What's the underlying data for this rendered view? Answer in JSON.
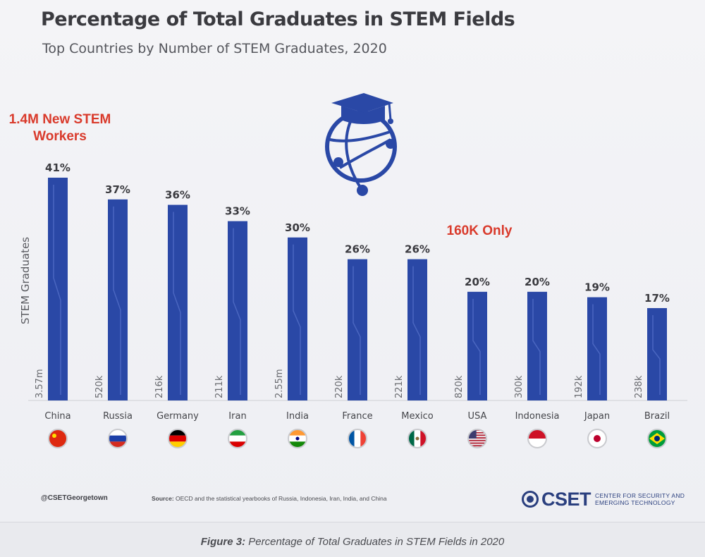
{
  "header": {
    "title": "Percentage of Total Graduates in STEM Fields",
    "subtitle": "Top Countries by Number of STEM Graduates, 2020"
  },
  "callouts": {
    "china": "1.4M New STEM Workers",
    "usa": "160K Only"
  },
  "chart_data": {
    "type": "bar",
    "title": "Percentage of Total Graduates in STEM Fields",
    "subtitle": "Top Countries by Number of STEM Graduates, 2020",
    "ylabel": "STEM Graduates",
    "xlabel": "",
    "categories": [
      "China",
      "Russia",
      "Germany",
      "Iran",
      "India",
      "France",
      "Mexico",
      "USA",
      "Indonesia",
      "Japan",
      "Brazil"
    ],
    "values": [
      41,
      37,
      36,
      33,
      30,
      26,
      26,
      20,
      20,
      19,
      17
    ],
    "value_labels": [
      "41%",
      "37%",
      "36%",
      "33%",
      "30%",
      "26%",
      "26%",
      "20%",
      "20%",
      "19%",
      "17%"
    ],
    "graduate_counts": [
      "3.57m",
      "520k",
      "216k",
      "211k",
      "2.55m",
      "220k",
      "221k",
      "820k",
      "300k",
      "192k",
      "238k"
    ],
    "ylim": [
      0,
      41
    ],
    "grid": false,
    "bar_color": "#2a48a6",
    "flag_icons": [
      "china-flag-icon",
      "russia-flag-icon",
      "germany-flag-icon",
      "iran-flag-icon",
      "india-flag-icon",
      "france-flag-icon",
      "mexico-flag-icon",
      "usa-flag-icon",
      "indonesia-flag-icon",
      "japan-flag-icon",
      "brazil-flag-icon"
    ]
  },
  "footer": {
    "handle": "@CSETGeorgetown",
    "source_label": "Source:",
    "source_text": "OECD and the statistical yearbooks of Russia, Indonesia, Iran, India, and China",
    "logo_name": "CSET",
    "logo_tag_line1": "Center for Security and",
    "logo_tag_line2": "Emerging Technology"
  },
  "caption": {
    "label": "Figure 3:",
    "text": "Percentage of Total Graduates in STEM Fields in 2020"
  },
  "icons": {
    "center": "graduation-globe-icon",
    "logo": "cset-logo-icon"
  }
}
